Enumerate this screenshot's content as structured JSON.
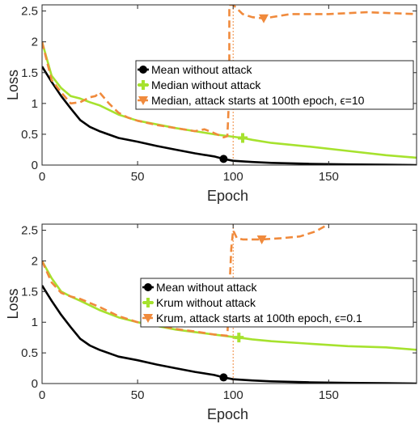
{
  "colors": {
    "mean": "#000000",
    "defense": "#a6e22e",
    "attack": "#f08a3c",
    "axis": "#262626",
    "grid": "#ffffff"
  },
  "chart_data": [
    {
      "type": "line",
      "xlabel": "Epoch",
      "ylabel": "Loss",
      "xlim": [
        0,
        196
      ],
      "ylim": [
        0,
        2.6
      ],
      "xticks": [
        "0",
        "50",
        "100",
        "150"
      ],
      "xtick_values": [
        0,
        50,
        100,
        150
      ],
      "yticks": [
        "0",
        "0.5",
        "1",
        "1.5",
        "2",
        "2.5"
      ],
      "ytick_values": [
        0,
        0.5,
        1,
        1.5,
        2,
        2.5
      ],
      "grid": false,
      "legend_position": "center-right",
      "attack_epoch": 100,
      "series": [
        {
          "name": "Mean without attack",
          "style": "solid",
          "marker": "circle",
          "marker_at": 95,
          "x": [
            0,
            5,
            10,
            15,
            20,
            25,
            30,
            40,
            50,
            60,
            70,
            80,
            90,
            95,
            100,
            110,
            120,
            140,
            160,
            180,
            196
          ],
          "y": [
            1.6,
            1.35,
            1.12,
            0.92,
            0.73,
            0.62,
            0.55,
            0.44,
            0.38,
            0.31,
            0.25,
            0.19,
            0.14,
            0.1,
            0.07,
            0.05,
            0.035,
            0.02,
            0.01,
            0.005,
            0.0
          ]
        },
        {
          "name": "Median without attack",
          "style": "solid",
          "marker": "plus",
          "marker_at": 105,
          "x": [
            0,
            5,
            10,
            15,
            20,
            25,
            30,
            40,
            50,
            60,
            70,
            80,
            90,
            100,
            105,
            110,
            120,
            140,
            160,
            180,
            196
          ],
          "y": [
            2.0,
            1.45,
            1.25,
            1.12,
            1.08,
            1.02,
            0.97,
            0.82,
            0.72,
            0.66,
            0.6,
            0.55,
            0.5,
            0.46,
            0.44,
            0.41,
            0.36,
            0.3,
            0.23,
            0.16,
            0.12
          ]
        },
        {
          "name": "Median, attack starts at 100th epoch, ϵ=10",
          "style": "dashed",
          "marker": "triangle-down",
          "marker_at": 116,
          "x": [
            0,
            5,
            10,
            15,
            20,
            25,
            28,
            30,
            35,
            40,
            45,
            50,
            60,
            70,
            80,
            85,
            90,
            95,
            97,
            98,
            98,
            100,
            105,
            110,
            116,
            130,
            150,
            170,
            196
          ],
          "y": [
            2.0,
            1.38,
            1.18,
            1.0,
            1.02,
            1.1,
            1.12,
            1.18,
            1.0,
            0.85,
            0.77,
            0.72,
            0.65,
            0.6,
            0.55,
            0.58,
            0.52,
            0.45,
            0.47,
            1.2,
            2.6,
            2.6,
            2.45,
            2.4,
            2.38,
            2.45,
            2.45,
            2.48,
            2.45
          ]
        }
      ]
    },
    {
      "type": "line",
      "xlabel": "Epoch",
      "ylabel": "Loss",
      "xlim": [
        0,
        196
      ],
      "ylim": [
        0,
        2.6
      ],
      "xticks": [
        "0",
        "50",
        "100",
        "150"
      ],
      "xtick_values": [
        0,
        50,
        100,
        150
      ],
      "yticks": [
        "0",
        "0.5",
        "1",
        "1.5",
        "2",
        "2.5"
      ],
      "ytick_values": [
        0,
        0.5,
        1,
        1.5,
        2,
        2.5
      ],
      "grid": false,
      "legend_position": "center-right",
      "attack_epoch": 100,
      "series": [
        {
          "name": "Mean without attack",
          "style": "solid",
          "marker": "circle",
          "marker_at": 95,
          "x": [
            0,
            5,
            10,
            15,
            20,
            25,
            30,
            40,
            50,
            60,
            70,
            80,
            90,
            95,
            100,
            110,
            120,
            140,
            160,
            180,
            196
          ],
          "y": [
            1.6,
            1.35,
            1.12,
            0.92,
            0.73,
            0.62,
            0.55,
            0.44,
            0.38,
            0.31,
            0.25,
            0.19,
            0.14,
            0.1,
            0.07,
            0.05,
            0.035,
            0.02,
            0.01,
            0.005,
            0.0
          ]
        },
        {
          "name": "Krum without attack",
          "style": "solid",
          "marker": "plus",
          "marker_at": 103,
          "x": [
            0,
            5,
            10,
            15,
            20,
            30,
            40,
            50,
            60,
            70,
            80,
            90,
            100,
            103,
            110,
            120,
            140,
            160,
            180,
            196
          ],
          "y": [
            2.0,
            1.72,
            1.5,
            1.42,
            1.35,
            1.2,
            1.08,
            1.0,
            0.94,
            0.88,
            0.84,
            0.8,
            0.76,
            0.75,
            0.72,
            0.69,
            0.65,
            0.61,
            0.59,
            0.55
          ]
        },
        {
          "name": "Krum, attack starts at 100th epoch, ϵ=0.1",
          "style": "dashed",
          "marker": "triangle-down",
          "marker_at": 115,
          "x": [
            0,
            5,
            10,
            15,
            20,
            30,
            40,
            50,
            60,
            70,
            80,
            90,
            97,
            99,
            100,
            102,
            105,
            110,
            115,
            125,
            135,
            143,
            150
          ],
          "y": [
            2.0,
            1.65,
            1.48,
            1.42,
            1.38,
            1.25,
            1.1,
            1.0,
            0.95,
            0.89,
            0.85,
            0.8,
            0.78,
            2.2,
            2.5,
            2.37,
            2.35,
            2.35,
            2.35,
            2.37,
            2.4,
            2.48,
            2.6
          ]
        }
      ]
    }
  ]
}
